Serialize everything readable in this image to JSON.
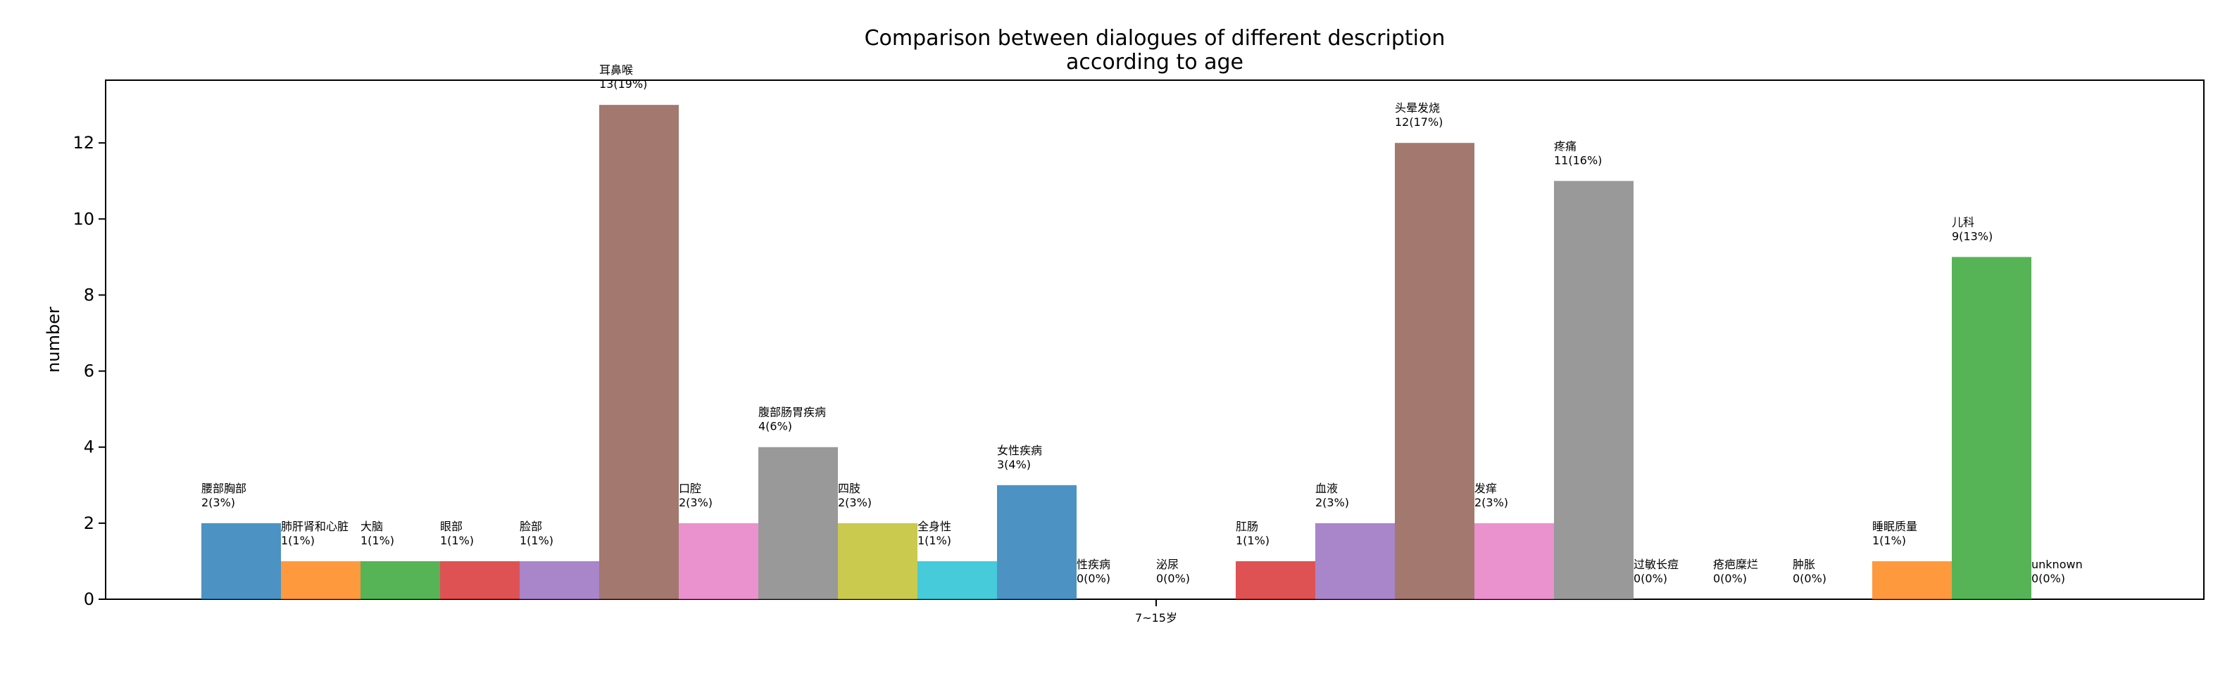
{
  "chart_data": {
    "type": "bar",
    "title": "Comparison between dialogues of different description\naccording to age",
    "xlabel": "",
    "ylabel": "number",
    "ylim": [
      0,
      13.65
    ],
    "yticks": [
      0,
      2,
      4,
      6,
      8,
      10,
      12
    ],
    "x_tick_labels": [
      "7~15岁"
    ],
    "grid": false,
    "legend": "none",
    "bars": [
      {
        "name": "腰部胸部",
        "value": 2,
        "label": "2(3%)",
        "color": "#1f77b4"
      },
      {
        "name": "肺肝肾和心脏",
        "value": 1,
        "label": "1(1%)",
        "color": "#ff7f0e"
      },
      {
        "name": "大脑",
        "value": 1,
        "label": "1(1%)",
        "color": "#2ca02c"
      },
      {
        "name": "眼部",
        "value": 1,
        "label": "1(1%)",
        "color": "#d62728"
      },
      {
        "name": "脸部",
        "value": 1,
        "label": "1(1%)",
        "color": "#9467bd"
      },
      {
        "name": "耳鼻喉",
        "value": 13,
        "label": "13(19%)",
        "color": "#8c564b"
      },
      {
        "name": "口腔",
        "value": 2,
        "label": "2(3%)",
        "color": "#e377c2"
      },
      {
        "name": "腹部肠胃疾病",
        "value": 4,
        "label": "4(6%)",
        "color": "#7f7f7f"
      },
      {
        "name": "四肢",
        "value": 2,
        "label": "2(3%)",
        "color": "#bcbd22"
      },
      {
        "name": "全身性",
        "value": 1,
        "label": "1(1%)",
        "color": "#17becf"
      },
      {
        "name": "女性疾病",
        "value": 3,
        "label": "3(4%)",
        "color": "#1f77b4"
      },
      {
        "name": "性疾病",
        "value": 0,
        "label": "0(0%)",
        "color": "#ff7f0e"
      },
      {
        "name": "泌尿",
        "value": 0,
        "label": "0(0%)",
        "color": "#2ca02c"
      },
      {
        "name": "肛肠",
        "value": 1,
        "label": "1(1%)",
        "color": "#d62728"
      },
      {
        "name": "血液",
        "value": 2,
        "label": "2(3%)",
        "color": "#9467bd"
      },
      {
        "name": "头晕发烧",
        "value": 12,
        "label": "12(17%)",
        "color": "#8c564b"
      },
      {
        "name": "发痒",
        "value": 2,
        "label": "2(3%)",
        "color": "#e377c2"
      },
      {
        "name": "疼痛",
        "value": 11,
        "label": "11(16%)",
        "color": "#7f7f7f"
      },
      {
        "name": "过敏长痘",
        "value": 0,
        "label": "0(0%)",
        "color": "#bcbd22"
      },
      {
        "name": "疮疤糜烂",
        "value": 0,
        "label": "0(0%)",
        "color": "#17becf"
      },
      {
        "name": "肿胀",
        "value": 0,
        "label": "0(0%)",
        "color": "#1f77b4"
      },
      {
        "name": "睡眠质量",
        "value": 1,
        "label": "1(1%)",
        "color": "#ff7f0e"
      },
      {
        "name": "儿科",
        "value": 9,
        "label": "9(13%)",
        "color": "#2ca02c"
      },
      {
        "name": "unknown",
        "value": 0,
        "label": "0(0%)",
        "color": "#d62728"
      }
    ]
  }
}
